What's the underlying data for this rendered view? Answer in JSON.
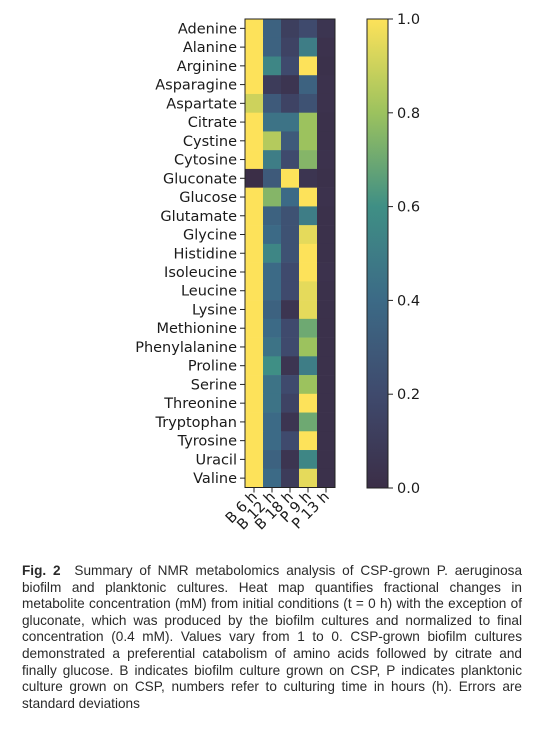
{
  "chart_data": {
    "type": "heatmap",
    "title": "",
    "xlabel": "",
    "ylabel": "",
    "x_categories": [
      "B 6 h",
      "B 12 h",
      "B 18 h",
      "P 9 h",
      "P 13 h"
    ],
    "y_categories": [
      "Adenine",
      "Alanine",
      "Arginine",
      "Asparagine",
      "Aspartate",
      "Citrate",
      "Cystine",
      "Cytosine",
      "Gluconate",
      "Glucose",
      "Glutamate",
      "Glycine",
      "Histidine",
      "Isoleucine",
      "Leucine",
      "Lysine",
      "Methionine",
      "Phenylalanine",
      "Proline",
      "Serine",
      "Threonine",
      "Tryptophan",
      "Tyrosine",
      "Uracil",
      "Valine"
    ],
    "values": [
      [
        1.0,
        0.35,
        0.12,
        0.2,
        0.05
      ],
      [
        1.0,
        0.35,
        0.15,
        0.5,
        0.03
      ],
      [
        1.0,
        0.55,
        0.2,
        1.0,
        0.02
      ],
      [
        1.0,
        0.1,
        0.05,
        0.35,
        0.03
      ],
      [
        0.9,
        0.3,
        0.15,
        0.25,
        0.03
      ],
      [
        1.0,
        0.45,
        0.45,
        0.8,
        0.02
      ],
      [
        1.0,
        0.85,
        0.3,
        0.8,
        0.02
      ],
      [
        1.0,
        0.5,
        0.2,
        0.75,
        0.03
      ],
      [
        0.0,
        0.3,
        1.0,
        0.05,
        0.02
      ],
      [
        1.0,
        0.75,
        0.4,
        1.0,
        0.03
      ],
      [
        1.0,
        0.35,
        0.25,
        0.5,
        0.02
      ],
      [
        1.0,
        0.4,
        0.25,
        0.95,
        0.02
      ],
      [
        1.0,
        0.55,
        0.25,
        1.0,
        0.02
      ],
      [
        1.0,
        0.4,
        0.2,
        1.0,
        0.03
      ],
      [
        1.0,
        0.4,
        0.2,
        0.95,
        0.02
      ],
      [
        1.0,
        0.35,
        0.05,
        0.95,
        0.02
      ],
      [
        1.0,
        0.4,
        0.2,
        0.7,
        0.02
      ],
      [
        1.0,
        0.45,
        0.2,
        0.8,
        0.02
      ],
      [
        1.0,
        0.6,
        0.05,
        0.5,
        0.02
      ],
      [
        1.0,
        0.45,
        0.2,
        0.8,
        0.02
      ],
      [
        1.0,
        0.45,
        0.15,
        1.0,
        0.02
      ],
      [
        1.0,
        0.4,
        0.05,
        0.7,
        0.02
      ],
      [
        1.0,
        0.4,
        0.2,
        1.0,
        0.02
      ],
      [
        1.0,
        0.35,
        0.05,
        0.55,
        0.02
      ],
      [
        1.0,
        0.4,
        0.1,
        0.95,
        0.02
      ]
    ],
    "colorbar": {
      "range": [
        0.0,
        1.0
      ],
      "ticks": [
        0.0,
        0.2,
        0.4,
        0.6,
        0.8,
        1.0
      ],
      "tick_labels": [
        "0.0",
        "0.2",
        "0.4",
        "0.6",
        "0.8",
        "1.0"
      ]
    },
    "colormap": [
      "#3b2e47",
      "#3f4a6d",
      "#3c6a86",
      "#3f8f85",
      "#9cc25e",
      "#fde25a"
    ],
    "grid": false
  },
  "caption": {
    "label": "Fig. 2",
    "text": "Summary of NMR metabolomics analysis of CSP-grown P. aeruginosa biofilm and planktonic cultures. Heat map quantifies fractional changes in metabolite concentration (mM) from initial conditions (t = 0 h) with the exception of gluconate, which was produced by the biofilm cultures and normalized to final concentration (0.4 mM). Values vary from 1 to 0. CSP-grown biofilm cultures demonstrated a preferential catabolism of amino acids followed by citrate and finally glucose. B indicates biofilm culture grown on CSP, P indicates planktonic culture grown on CSP, numbers refer to culturing time in hours (h). Errors are standard deviations"
  }
}
